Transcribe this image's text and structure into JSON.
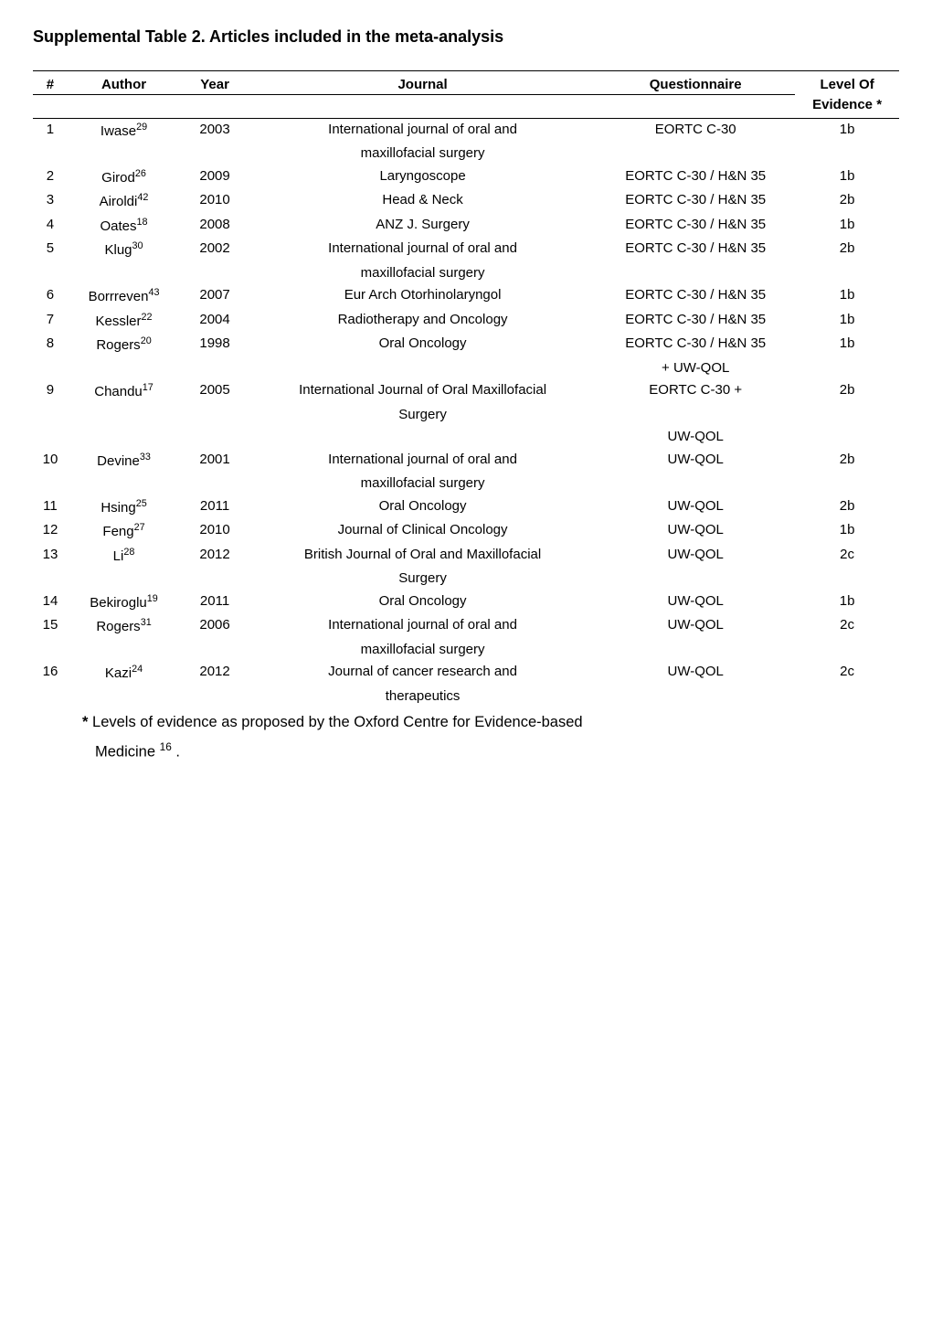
{
  "title": "Supplemental Table 2. Articles included in the meta-analysis",
  "columns": {
    "num": "#",
    "author": "Author",
    "year": "Year",
    "journal": "Journal",
    "questionnaire": "Questionnaire",
    "level_top": "Level Of",
    "level_sub": "Evidence *"
  },
  "rows": [
    {
      "n": "1",
      "author": "Iwase",
      "ref": "29",
      "year": "2003",
      "journal_l1": "International journal of oral and",
      "journal_l2": "maxillofacial surgery",
      "quest": "EORTC C-30",
      "lvl": "1b"
    },
    {
      "n": "2",
      "author": "Girod",
      "ref": "26",
      "year": "2009",
      "journal_l1": "Laryngoscope",
      "journal_l2": "",
      "quest": "EORTC C-30 / H&N 35",
      "lvl": "1b"
    },
    {
      "n": "3",
      "author": "Airoldi",
      "ref": "42",
      "year": "2010",
      "journal_l1": "Head & Neck",
      "journal_l2": "",
      "quest": "EORTC C-30 / H&N 35",
      "lvl": "2b"
    },
    {
      "n": "4",
      "author": "Oates",
      "ref": "18",
      "year": "2008",
      "journal_l1": "ANZ J. Surgery",
      "journal_l2": "",
      "quest": "EORTC C-30 / H&N 35",
      "lvl": "1b"
    },
    {
      "n": "5",
      "author": "Klug",
      "ref": "30",
      "year": "2002",
      "journal_l1": "International journal of oral and",
      "journal_l2": "maxillofacial surgery",
      "quest": "EORTC C-30 / H&N 35",
      "lvl": "2b"
    },
    {
      "n": "6",
      "author": "Borrreven",
      "ref": "43",
      "year": "2007",
      "journal_l1": "Eur Arch Otorhinolaryngol",
      "journal_l2": "",
      "quest": "EORTC C-30 / H&N 35",
      "lvl": "1b"
    },
    {
      "n": "7",
      "author": "Kessler",
      "ref": "22",
      "year": "2004",
      "journal_l1": "Radiotherapy and Oncology",
      "journal_l2": "",
      "quest": "EORTC C-30 / H&N 35",
      "lvl": "1b"
    },
    {
      "n": "8",
      "author": "Rogers",
      "ref": "20",
      "year": "1998",
      "journal_l1": "Oral Oncology",
      "journal_l2": "",
      "quest": "EORTC C-30 / H&N 35",
      "quest_l2": "+  UW-QOL",
      "lvl": "1b"
    },
    {
      "n": "9",
      "author": "Chandu",
      "ref": "17",
      "year": "2005",
      "journal_l1": "International Journal of Oral Maxillofacial",
      "journal_l2": "Surgery",
      "quest": "EORTC C-30 +",
      "lvl": "2b"
    },
    {
      "n": "",
      "author": "",
      "ref": "",
      "year": "",
      "journal_l1": "",
      "journal_l2": "",
      "quest": "UW-QOL",
      "lvl": ""
    },
    {
      "n": "10",
      "author": "Devine",
      "ref": "33",
      "year": "2001",
      "journal_l1": "International journal of oral and",
      "journal_l2": "maxillofacial surgery",
      "quest": "UW-QOL",
      "lvl": "2b"
    },
    {
      "n": "11",
      "author": "Hsing",
      "ref": "25",
      "year": "2011",
      "journal_l1": "Oral Oncology",
      "journal_l2": "",
      "quest": "UW-QOL",
      "lvl": "2b"
    },
    {
      "n": "12",
      "author": "Feng",
      "ref": "27",
      "year": "2010",
      "journal_l1": "Journal of Clinical Oncology",
      "journal_l2": "",
      "quest": "UW-QOL",
      "lvl": "1b"
    },
    {
      "n": "13",
      "author": "Li",
      "ref": "28",
      "year": "2012",
      "journal_l1": "British Journal of Oral and Maxillofacial",
      "journal_l2": "Surgery",
      "quest": "UW-QOL",
      "lvl": "2c"
    },
    {
      "n": "14",
      "author": "Bekiroglu",
      "ref": "19",
      "year": "2011",
      "journal_l1": "Oral Oncology",
      "journal_l2": "",
      "quest": "UW-QOL",
      "lvl": "1b"
    },
    {
      "n": "15",
      "author": "Rogers",
      "ref": "31",
      "year": "2006",
      "journal_l1": "International journal of oral and",
      "journal_l2": "maxillofacial surgery",
      "quest": "UW-QOL",
      "lvl": "2c"
    },
    {
      "n": "16",
      "author": "Kazi",
      "ref": "24",
      "year": "2012",
      "journal_l1": "Journal of cancer research and",
      "journal_l2": "therapeutics",
      "quest": "UW-QOL",
      "lvl": "2c"
    }
  ],
  "footnote_prefix": "* ",
  "footnote_l1": "Levels of evidence as proposed by the Oxford Centre for Evidence-based",
  "footnote_l2a": "Medicine ",
  "footnote_ref": "16",
  "footnote_l2b": " ."
}
